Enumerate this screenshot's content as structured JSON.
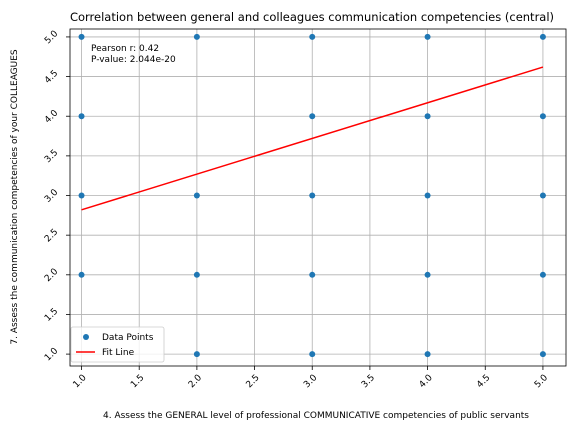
{
  "chart_data": {
    "type": "scatter",
    "title": "Correlation between general and colleagues communication competencies (central)",
    "xlabel": "4. Assess the GENERAL level of professional COMMUNICATIVE competencies of public servants",
    "ylabel": "7. Assess the communication competencies of your COLLEAGUES",
    "xlim": [
      0.9,
      5.2
    ],
    "ylim": [
      0.85,
      5.1
    ],
    "xticks": [
      "1.0",
      "1.5",
      "2.0",
      "2.5",
      "3.0",
      "3.5",
      "4.0",
      "4.5",
      "5.0"
    ],
    "yticks": [
      "1.0",
      "1.5",
      "2.0",
      "2.5",
      "3.0",
      "3.5",
      "4.0",
      "4.5",
      "5.0"
    ],
    "grid": true,
    "legend_position": "bottom-left",
    "points": [
      [
        1,
        2
      ],
      [
        1,
        3
      ],
      [
        1,
        4
      ],
      [
        1,
        5
      ],
      [
        2,
        1
      ],
      [
        2,
        2
      ],
      [
        2,
        3
      ],
      [
        2,
        5
      ],
      [
        3,
        1
      ],
      [
        3,
        2
      ],
      [
        3,
        3
      ],
      [
        3,
        4
      ],
      [
        3,
        5
      ],
      [
        4,
        1
      ],
      [
        4,
        2
      ],
      [
        4,
        3
      ],
      [
        4,
        4
      ],
      [
        4,
        5
      ],
      [
        5,
        1
      ],
      [
        5,
        2
      ],
      [
        5,
        3
      ],
      [
        5,
        4
      ],
      [
        5,
        5
      ]
    ],
    "fit_line": {
      "x": [
        1,
        5
      ],
      "y": [
        2.82,
        4.62
      ]
    },
    "series": [
      {
        "name": "Data Points",
        "color": "#1f77b4"
      },
      {
        "name": "Fit Line",
        "color": "#ff0000"
      }
    ],
    "annotations": [
      "Pearson r: 0.42",
      "P-value: 2.044e-20"
    ]
  }
}
